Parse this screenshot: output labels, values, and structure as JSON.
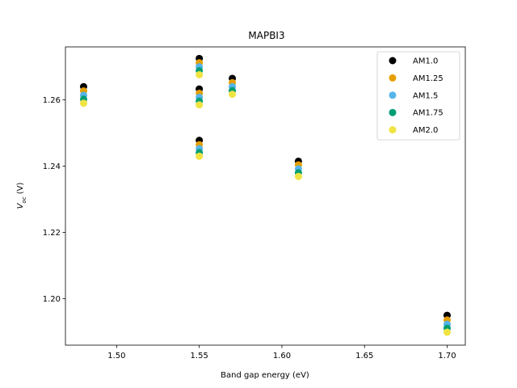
{
  "chart_data": {
    "type": "scatter",
    "title": "MAPBI3",
    "xlabel": "Band gap energy (eV)",
    "ylabel_main": "V",
    "ylabel_sub": "oc",
    "ylabel_unit": " (V)",
    "xlim": [
      1.469,
      1.711
    ],
    "ylim": [
      1.186,
      1.276
    ],
    "xticks": [
      1.5,
      1.55,
      1.6,
      1.65,
      1.7
    ],
    "xtick_labels": [
      "1.50",
      "1.55",
      "1.60",
      "1.65",
      "1.70"
    ],
    "yticks": [
      1.2,
      1.22,
      1.24,
      1.26
    ],
    "ytick_labels": [
      "1.20",
      "1.22",
      "1.24",
      "1.26"
    ],
    "grid": false,
    "legend_position": "top-right",
    "x": [
      1.48,
      1.55,
      1.55,
      1.55,
      1.57,
      1.61,
      1.7
    ],
    "series": [
      {
        "name": "AM1.0",
        "color": "#000000",
        "values": [
          1.264,
          1.2725,
          1.2633,
          1.2478,
          1.2665,
          1.2415,
          1.195
        ]
      },
      {
        "name": "AM1.25",
        "color": "#E69F00",
        "values": [
          1.2627,
          1.2712,
          1.262,
          1.2465,
          1.2652,
          1.2404,
          1.1936
        ]
      },
      {
        "name": "AM1.5",
        "color": "#56B4E9",
        "values": [
          1.2614,
          1.27,
          1.2608,
          1.2453,
          1.264,
          1.2392,
          1.1923
        ]
      },
      {
        "name": "AM1.75",
        "color": "#009E73",
        "values": [
          1.2602,
          1.2688,
          1.2596,
          1.2441,
          1.2628,
          1.238,
          1.1911
        ]
      },
      {
        "name": "AM2.0",
        "color": "#F0E442",
        "values": [
          1.259,
          1.2676,
          1.2585,
          1.243,
          1.2617,
          1.2369,
          1.1899
        ]
      }
    ]
  }
}
